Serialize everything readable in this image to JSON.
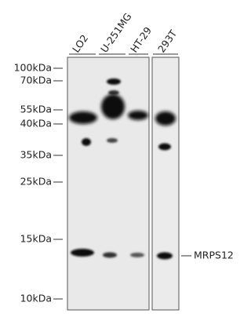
{
  "lanes": [
    "LO2",
    "U-251MG",
    "HT-29",
    "293T"
  ],
  "markers": [
    "100kDa",
    "70kDa",
    "55kDa",
    "40kDa",
    "35kDa",
    "25kDa",
    "15kDa",
    "10kDa"
  ],
  "protein": "MRPS12"
}
